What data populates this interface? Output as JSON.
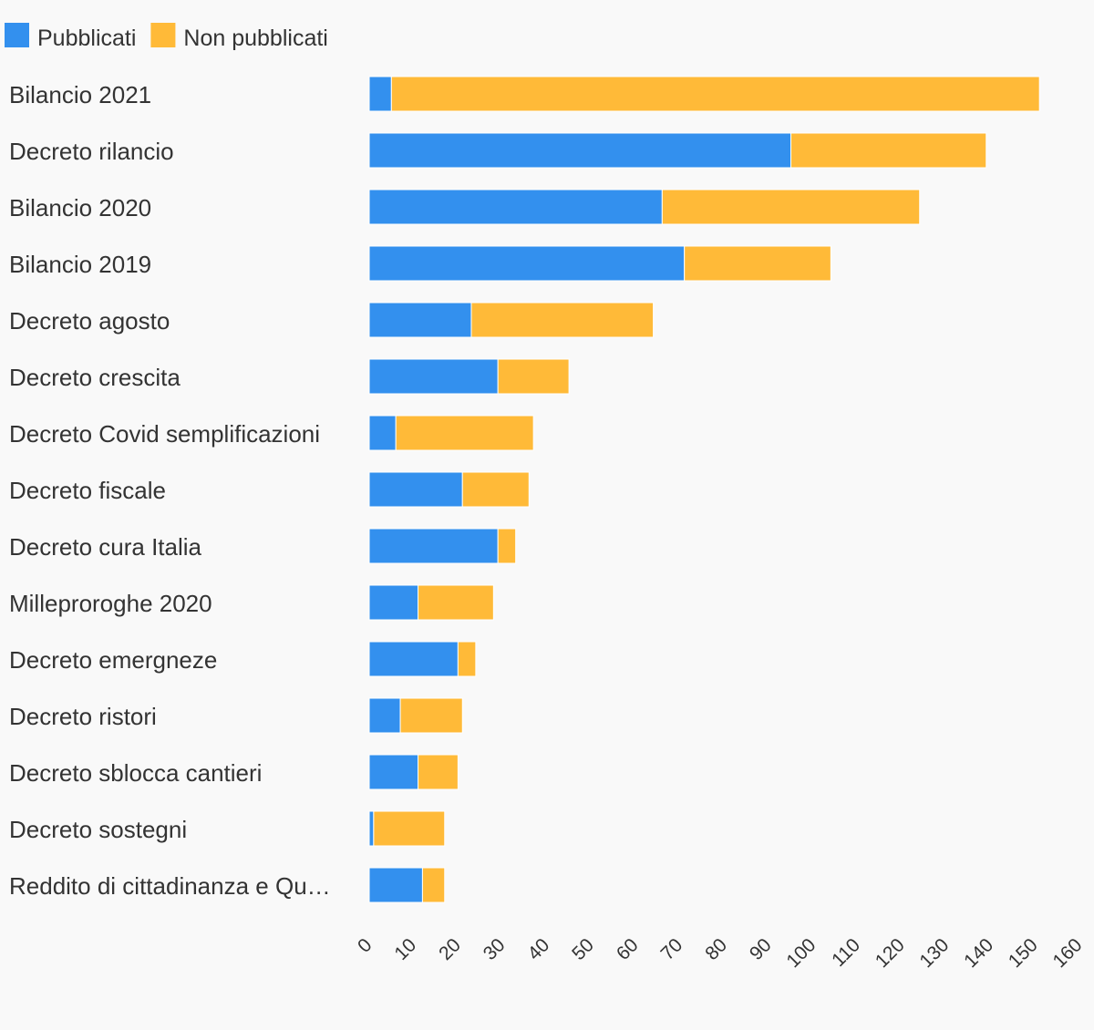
{
  "chart_data": {
    "type": "bar",
    "orientation": "horizontal",
    "stacked": true,
    "title": "",
    "xlabel": "",
    "ylabel": "",
    "legend_position": "top-left",
    "grid": false,
    "xlim": [
      0,
      160
    ],
    "x_ticks": [
      "0",
      "10",
      "20",
      "30",
      "40",
      "50",
      "60",
      "70",
      "80",
      "90",
      "100",
      "110",
      "120",
      "130",
      "140",
      "150",
      "160"
    ],
    "categories": [
      "Bilancio 2021",
      "Decreto rilancio",
      "Bilancio 2020",
      "Bilancio 2019",
      "Decreto agosto",
      "Decreto crescita",
      "Decreto Covid semplificazioni",
      "Decreto fiscale",
      "Decreto cura Italia",
      "Milleproroghe 2020",
      "Decreto emergneze",
      "Decreto ristori",
      "Decreto sblocca cantieri",
      "Decreto sostegni",
      "Reddito di cittadinanza e Qu…"
    ],
    "series": [
      {
        "name": "Pubblicati",
        "color": "#3390ee",
        "values": [
          5,
          95,
          66,
          71,
          23,
          29,
          6,
          21,
          29,
          11,
          20,
          7,
          11,
          1,
          12
        ]
      },
      {
        "name": "Non pubblicati",
        "color": "#ffba38",
        "values": [
          146,
          44,
          58,
          33,
          41,
          16,
          31,
          15,
          4,
          17,
          4,
          14,
          9,
          16,
          5
        ]
      }
    ]
  }
}
